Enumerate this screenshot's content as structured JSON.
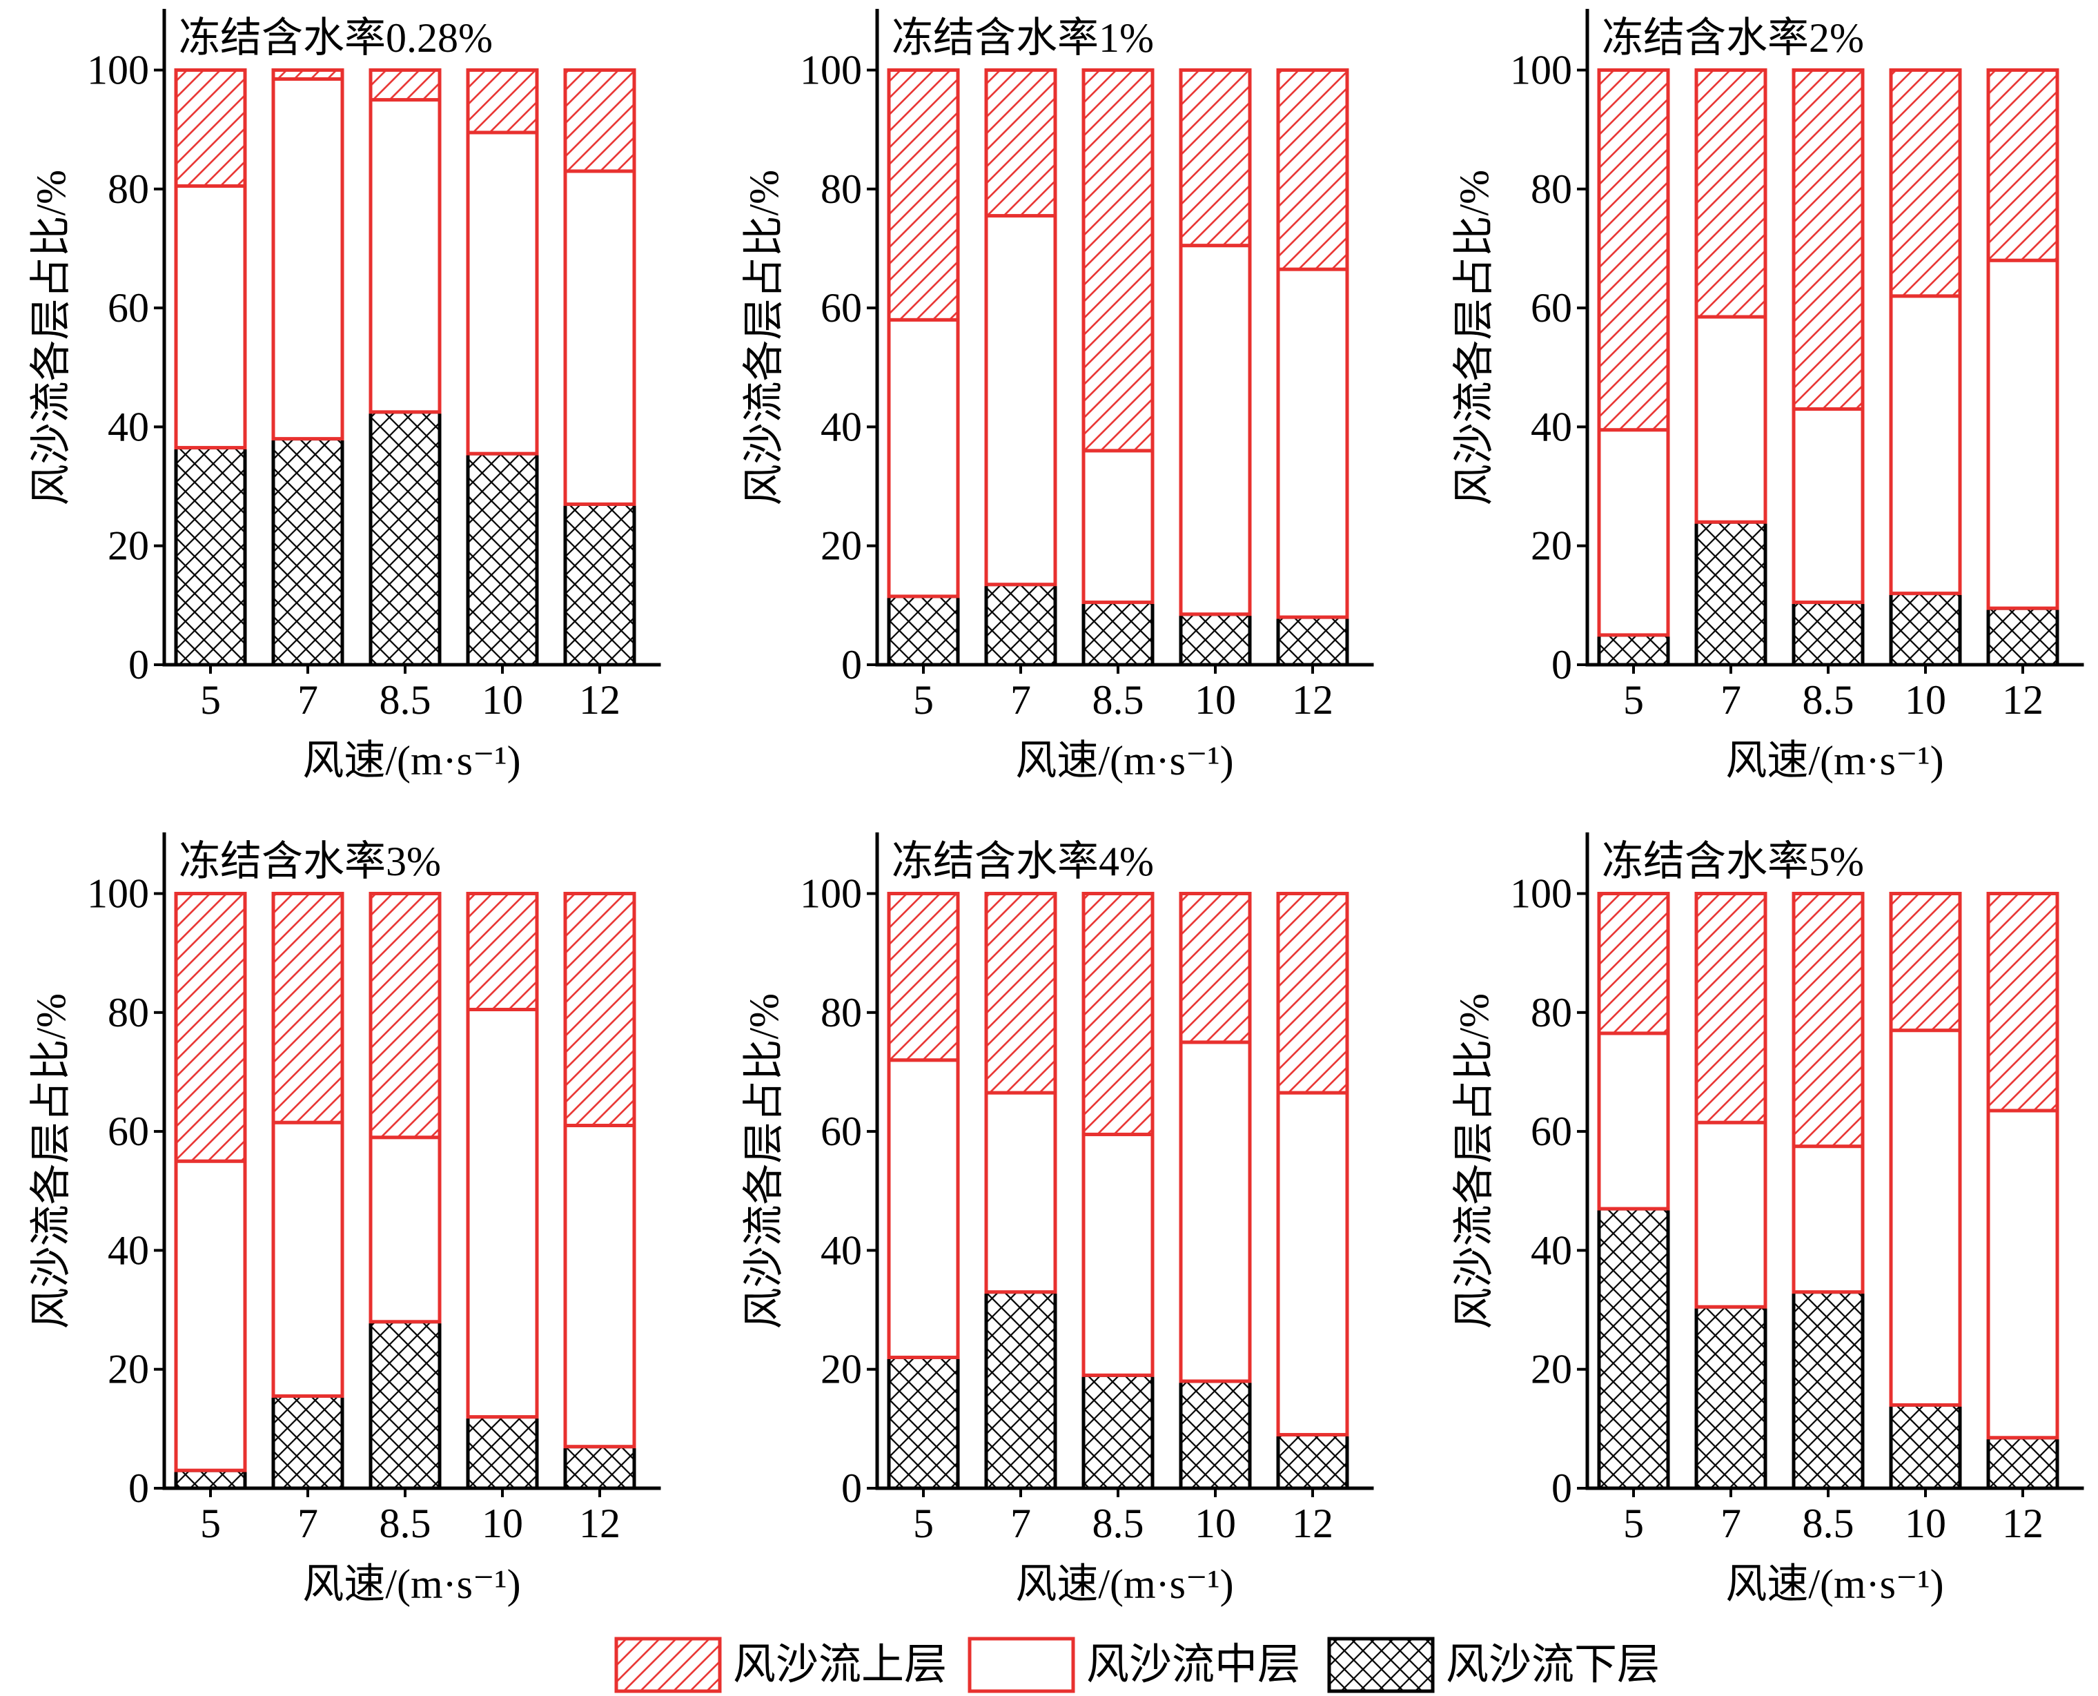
{
  "chart_data": {
    "type": "bar",
    "stacked": true,
    "xlabel": "风速/(m·s⁻¹)",
    "ylabel": "风沙流各层占比/%",
    "categories": [
      "5",
      "7",
      "8.5",
      "10",
      "12"
    ],
    "ylim": [
      0,
      110
    ],
    "yticks": [
      0,
      20,
      40,
      60,
      80,
      100
    ],
    "legend": "bottom-center",
    "series": [
      {
        "name": "风沙流上层",
        "color": "#e8312f",
        "hatch": "diagonal"
      },
      {
        "name": "风沙流中层",
        "color": "#e8312f",
        "hatch": "none"
      },
      {
        "name": "风沙流下层",
        "color": "#000000",
        "hatch": "cross"
      }
    ],
    "panels": [
      {
        "title": "冻结含水率0.28%",
        "series_values": [
          [
            19.5,
            1.5,
            5,
            10.5,
            17
          ],
          [
            44,
            60.5,
            52.5,
            54,
            56
          ],
          [
            36.5,
            38,
            42.5,
            35.5,
            27
          ]
        ]
      },
      {
        "title": "冻结含水率1%",
        "series_values": [
          [
            42,
            24.5,
            64,
            29.5,
            33.5
          ],
          [
            46.5,
            62,
            25.5,
            62,
            58.5
          ],
          [
            11.5,
            13.5,
            10.5,
            8.5,
            8
          ]
        ]
      },
      {
        "title": "冻结含水率2%",
        "series_values": [
          [
            60.5,
            41.5,
            57,
            38,
            32
          ],
          [
            34.5,
            34.5,
            32.5,
            50,
            58.5
          ],
          [
            5,
            24,
            10.5,
            12,
            9.5
          ]
        ]
      },
      {
        "title": "冻结含水率3%",
        "series_values": [
          [
            45,
            38.5,
            41,
            19.5,
            39
          ],
          [
            52,
            46,
            31,
            68.5,
            54
          ],
          [
            3,
            15.5,
            28,
            12,
            7
          ]
        ]
      },
      {
        "title": "冻结含水率4%",
        "series_values": [
          [
            28,
            33.5,
            40.5,
            25,
            33.5
          ],
          [
            50,
            33.5,
            40.5,
            57,
            57.5
          ],
          [
            22,
            33,
            19,
            18,
            9
          ]
        ]
      },
      {
        "title": "冻结含水率5%",
        "series_values": [
          [
            23.5,
            38.5,
            42.5,
            23,
            36.5
          ],
          [
            29.5,
            31,
            24.5,
            63,
            55
          ],
          [
            47,
            30.5,
            33,
            14,
            8.5
          ]
        ]
      }
    ]
  }
}
